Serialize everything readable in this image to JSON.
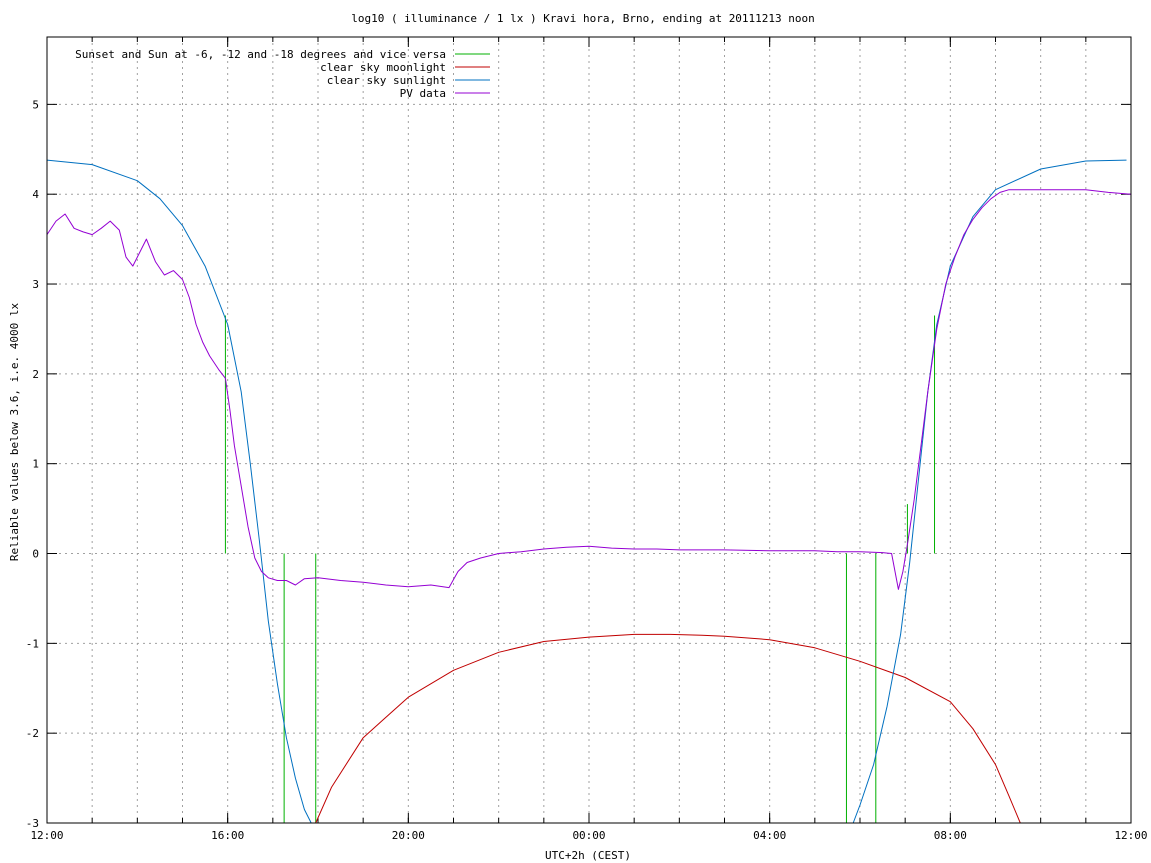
{
  "chart_data": {
    "type": "line",
    "title": "log10 ( illuminance / 1 lx ) Kravi hora, Brno, ending at 20111213 noon",
    "xlabel": "UTC+2h (CEST)",
    "ylabel": "Reliable values below 3.6, i.e. 4000 lx",
    "xlim": [
      12,
      36
    ],
    "ylim": [
      -3,
      5.75
    ],
    "x_unit": "hours since 12:00 on the first day (12 = 12:00, 24 = 00:00, 36 = 12:00 next day)",
    "x_ticks": [
      {
        "x": 12,
        "label": "12:00"
      },
      {
        "x": 16,
        "label": "16:00"
      },
      {
        "x": 20,
        "label": "20:00"
      },
      {
        "x": 24,
        "label": "00:00"
      },
      {
        "x": 28,
        "label": "04:00"
      },
      {
        "x": 32,
        "label": "08:00"
      },
      {
        "x": 36,
        "label": "12:00"
      }
    ],
    "y_ticks": [
      {
        "y": -3,
        "label": "-3"
      },
      {
        "y": -2,
        "label": "-2"
      },
      {
        "y": -1,
        "label": "-1"
      },
      {
        "y": 0,
        "label": "0"
      },
      {
        "y": 1,
        "label": "1"
      },
      {
        "y": 2,
        "label": "2"
      },
      {
        "y": 3,
        "label": "3"
      },
      {
        "y": 4,
        "label": "4"
      },
      {
        "y": 5,
        "label": "5"
      }
    ],
    "grid": true,
    "legend_position": "top-left",
    "series": [
      {
        "name": "Sunset and Sun at -6, -12 and -18 degrees and vice versa",
        "color": "#00b000",
        "style": "vertical-markers",
        "markers": [
          {
            "x": 15.95,
            "y_top": 2.65
          },
          {
            "x": 17.25,
            "y_top": 0.0
          },
          {
            "x": 17.95,
            "y_top": 0.0
          },
          {
            "x": 29.7,
            "y_top": 0.0
          },
          {
            "x": 30.35,
            "y_top": 0.0
          },
          {
            "x": 31.05,
            "y_top": 0.55
          },
          {
            "x": 31.65,
            "y_top": 2.65
          }
        ]
      },
      {
        "name": "clear sky moonlight",
        "color": "#c00000",
        "x": [
          17.95,
          18.3,
          19.0,
          20.0,
          21.0,
          22.0,
          23.0,
          24.0,
          25.0,
          25.8,
          26.5,
          27.0,
          28.0,
          29.0,
          30.0,
          31.0,
          32.0,
          32.5,
          33.0,
          33.3,
          33.55
        ],
        "y": [
          -3.0,
          -2.6,
          -2.05,
          -1.6,
          -1.3,
          -1.1,
          -0.98,
          -0.93,
          -0.9,
          -0.9,
          -0.91,
          -0.92,
          -0.96,
          -1.05,
          -1.2,
          -1.38,
          -1.65,
          -1.95,
          -2.35,
          -2.7,
          -3.0
        ]
      },
      {
        "name": "clear sky sunlight",
        "color": "#0070c0",
        "x": [
          12.0,
          13.0,
          14.0,
          14.5,
          15.0,
          15.5,
          16.0,
          16.3,
          16.5,
          16.7,
          16.9,
          17.1,
          17.3,
          17.5,
          17.7,
          17.85,
          29.85,
          30.0,
          30.3,
          30.6,
          30.9,
          31.1,
          31.3,
          31.5,
          31.7,
          32.0,
          32.5,
          33.0,
          34.0,
          35.0,
          35.9
        ],
        "y": [
          4.38,
          4.33,
          4.15,
          3.95,
          3.65,
          3.2,
          2.55,
          1.8,
          1.0,
          0.15,
          -0.75,
          -1.45,
          -2.05,
          -2.5,
          -2.85,
          -3.0,
          -3.0,
          -2.8,
          -2.35,
          -1.7,
          -0.9,
          -0.1,
          0.85,
          1.8,
          2.55,
          3.2,
          3.75,
          4.05,
          4.28,
          4.37,
          4.38
        ]
      },
      {
        "name": "PV data",
        "color": "#9400d3",
        "x": [
          12.0,
          12.2,
          12.4,
          12.6,
          12.8,
          13.0,
          13.2,
          13.4,
          13.6,
          13.75,
          13.9,
          14.05,
          14.2,
          14.4,
          14.6,
          14.8,
          15.0,
          15.15,
          15.3,
          15.45,
          15.6,
          15.8,
          15.95,
          16.05,
          16.15,
          16.3,
          16.45,
          16.6,
          16.75,
          16.9,
          17.1,
          17.3,
          17.5,
          17.7,
          18.0,
          18.5,
          19.0,
          19.5,
          20.0,
          20.5,
          20.9,
          21.1,
          21.3,
          21.6,
          22.0,
          22.5,
          23.0,
          23.5,
          24.0,
          24.5,
          25.0,
          25.5,
          26.0,
          27.0,
          28.0,
          29.0,
          29.5,
          30.0,
          30.5,
          30.7,
          30.85,
          30.95,
          31.05,
          31.2,
          31.35,
          31.5,
          31.7,
          31.9,
          32.1,
          32.3,
          32.5,
          32.7,
          32.9,
          33.1,
          33.3,
          33.5,
          34.0,
          34.5,
          35.0,
          35.5,
          36.0
        ],
        "y": [
          3.55,
          3.7,
          3.78,
          3.62,
          3.58,
          3.55,
          3.62,
          3.7,
          3.6,
          3.3,
          3.2,
          3.35,
          3.5,
          3.25,
          3.1,
          3.15,
          3.05,
          2.85,
          2.55,
          2.35,
          2.2,
          2.05,
          1.95,
          1.6,
          1.2,
          0.75,
          0.3,
          -0.05,
          -0.2,
          -0.27,
          -0.3,
          -0.3,
          -0.35,
          -0.28,
          -0.27,
          -0.3,
          -0.32,
          -0.35,
          -0.37,
          -0.35,
          -0.38,
          -0.2,
          -0.1,
          -0.05,
          0.0,
          0.02,
          0.05,
          0.07,
          0.08,
          0.06,
          0.05,
          0.05,
          0.04,
          0.04,
          0.03,
          0.03,
          0.02,
          0.02,
          0.01,
          0.0,
          -0.4,
          -0.2,
          0.1,
          0.6,
          1.2,
          1.8,
          2.5,
          3.0,
          3.3,
          3.55,
          3.72,
          3.85,
          3.95,
          4.02,
          4.05,
          4.05,
          4.05,
          4.05,
          4.05,
          4.02,
          4.0
        ]
      }
    ]
  }
}
